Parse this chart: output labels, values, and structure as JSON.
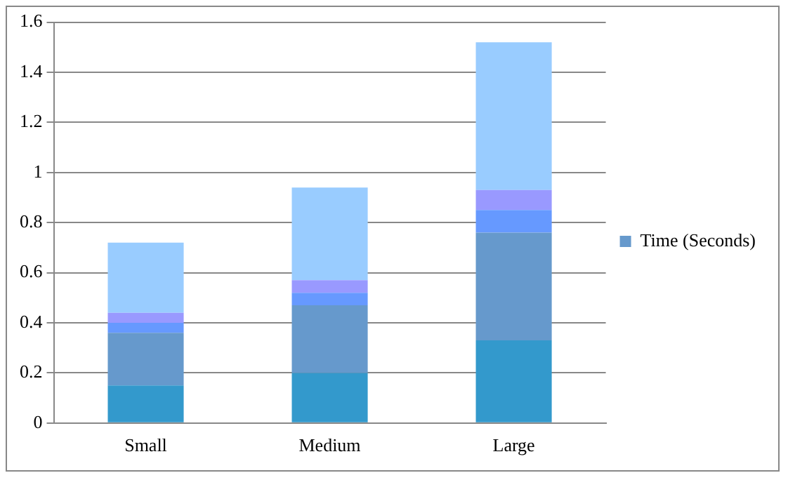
{
  "chart_data": {
    "type": "bar",
    "stacked": true,
    "categories": [
      "Small",
      "Medium",
      "Large"
    ],
    "series": [
      {
        "color": "#3399cc",
        "values": [
          0.15,
          0.2,
          0.33
        ]
      },
      {
        "name": "Time (Seconds)",
        "color": "#6699cc",
        "values": [
          0.21,
          0.27,
          0.43
        ]
      },
      {
        "color": "#6699ff",
        "values": [
          0.04,
          0.05,
          0.09
        ]
      },
      {
        "color": "#9999ff",
        "values": [
          0.04,
          0.05,
          0.08
        ]
      },
      {
        "color": "#99ccff",
        "values": [
          0.28,
          0.37,
          0.59
        ]
      }
    ],
    "ylim": [
      0,
      1.6
    ],
    "yticks": [
      0,
      0.2,
      0.4,
      0.6,
      0.8,
      1,
      1.2,
      1.4,
      1.6
    ],
    "grid": "y",
    "legend": "right"
  }
}
